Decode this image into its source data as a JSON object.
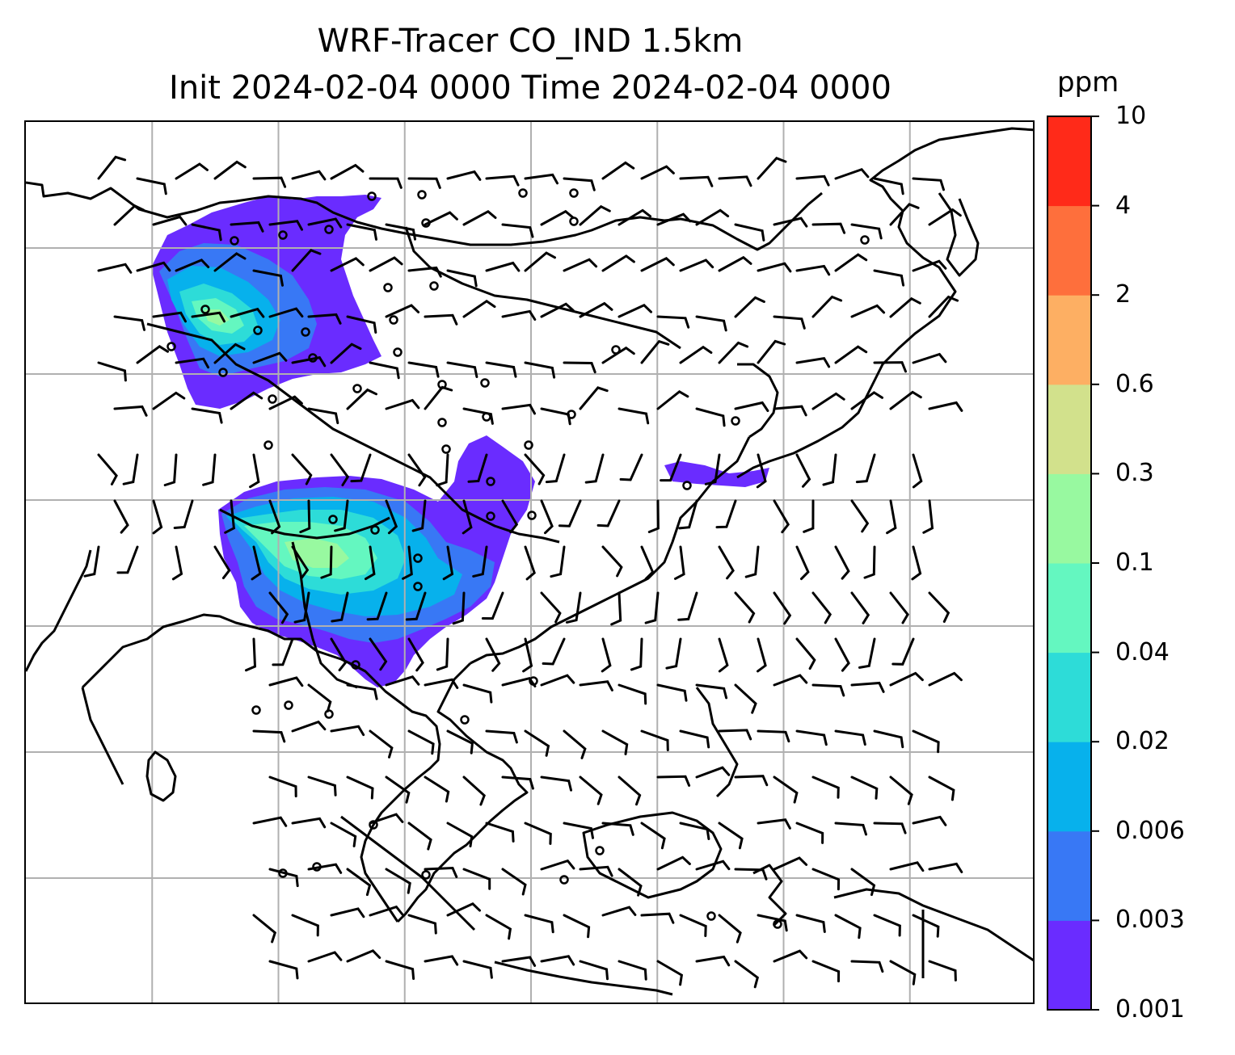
{
  "title": {
    "line1": "WRF-Tracer CO_IND 1.5km",
    "line2": "Init 2024-02-04 0000 Time 2024-02-04 0000"
  },
  "map": {
    "field": "CO_IND tracer concentration",
    "gridlines": true,
    "grid_columns": 8,
    "grid_rows": 7,
    "overlay": "wind barbs",
    "coastlines": true
  },
  "colorbar": {
    "unit_label": "ppm",
    "ticks": [
      "0.001",
      "0.003",
      "0.006",
      "0.02",
      "0.04",
      "0.1",
      "0.3",
      "0.6",
      "2",
      "4",
      "10"
    ],
    "colors": [
      "#6a2cff",
      "#3878f5",
      "#07b1ec",
      "#2ddcd8",
      "#64f7c0",
      "#98f9a0",
      "#d2e18c",
      "#fdaf63",
      "#fe6f3c",
      "#ff2a19"
    ]
  },
  "plumes": [
    {
      "region": "northwest",
      "levels": [
        "0.001",
        "0.003",
        "0.006",
        "0.02",
        "0.04",
        "0.1"
      ]
    },
    {
      "region": "south-central",
      "levels": [
        "0.001",
        "0.003",
        "0.006",
        "0.02",
        "0.04",
        "0.1"
      ]
    },
    {
      "region": "east-coast",
      "levels": [
        "0.001"
      ]
    }
  ]
}
